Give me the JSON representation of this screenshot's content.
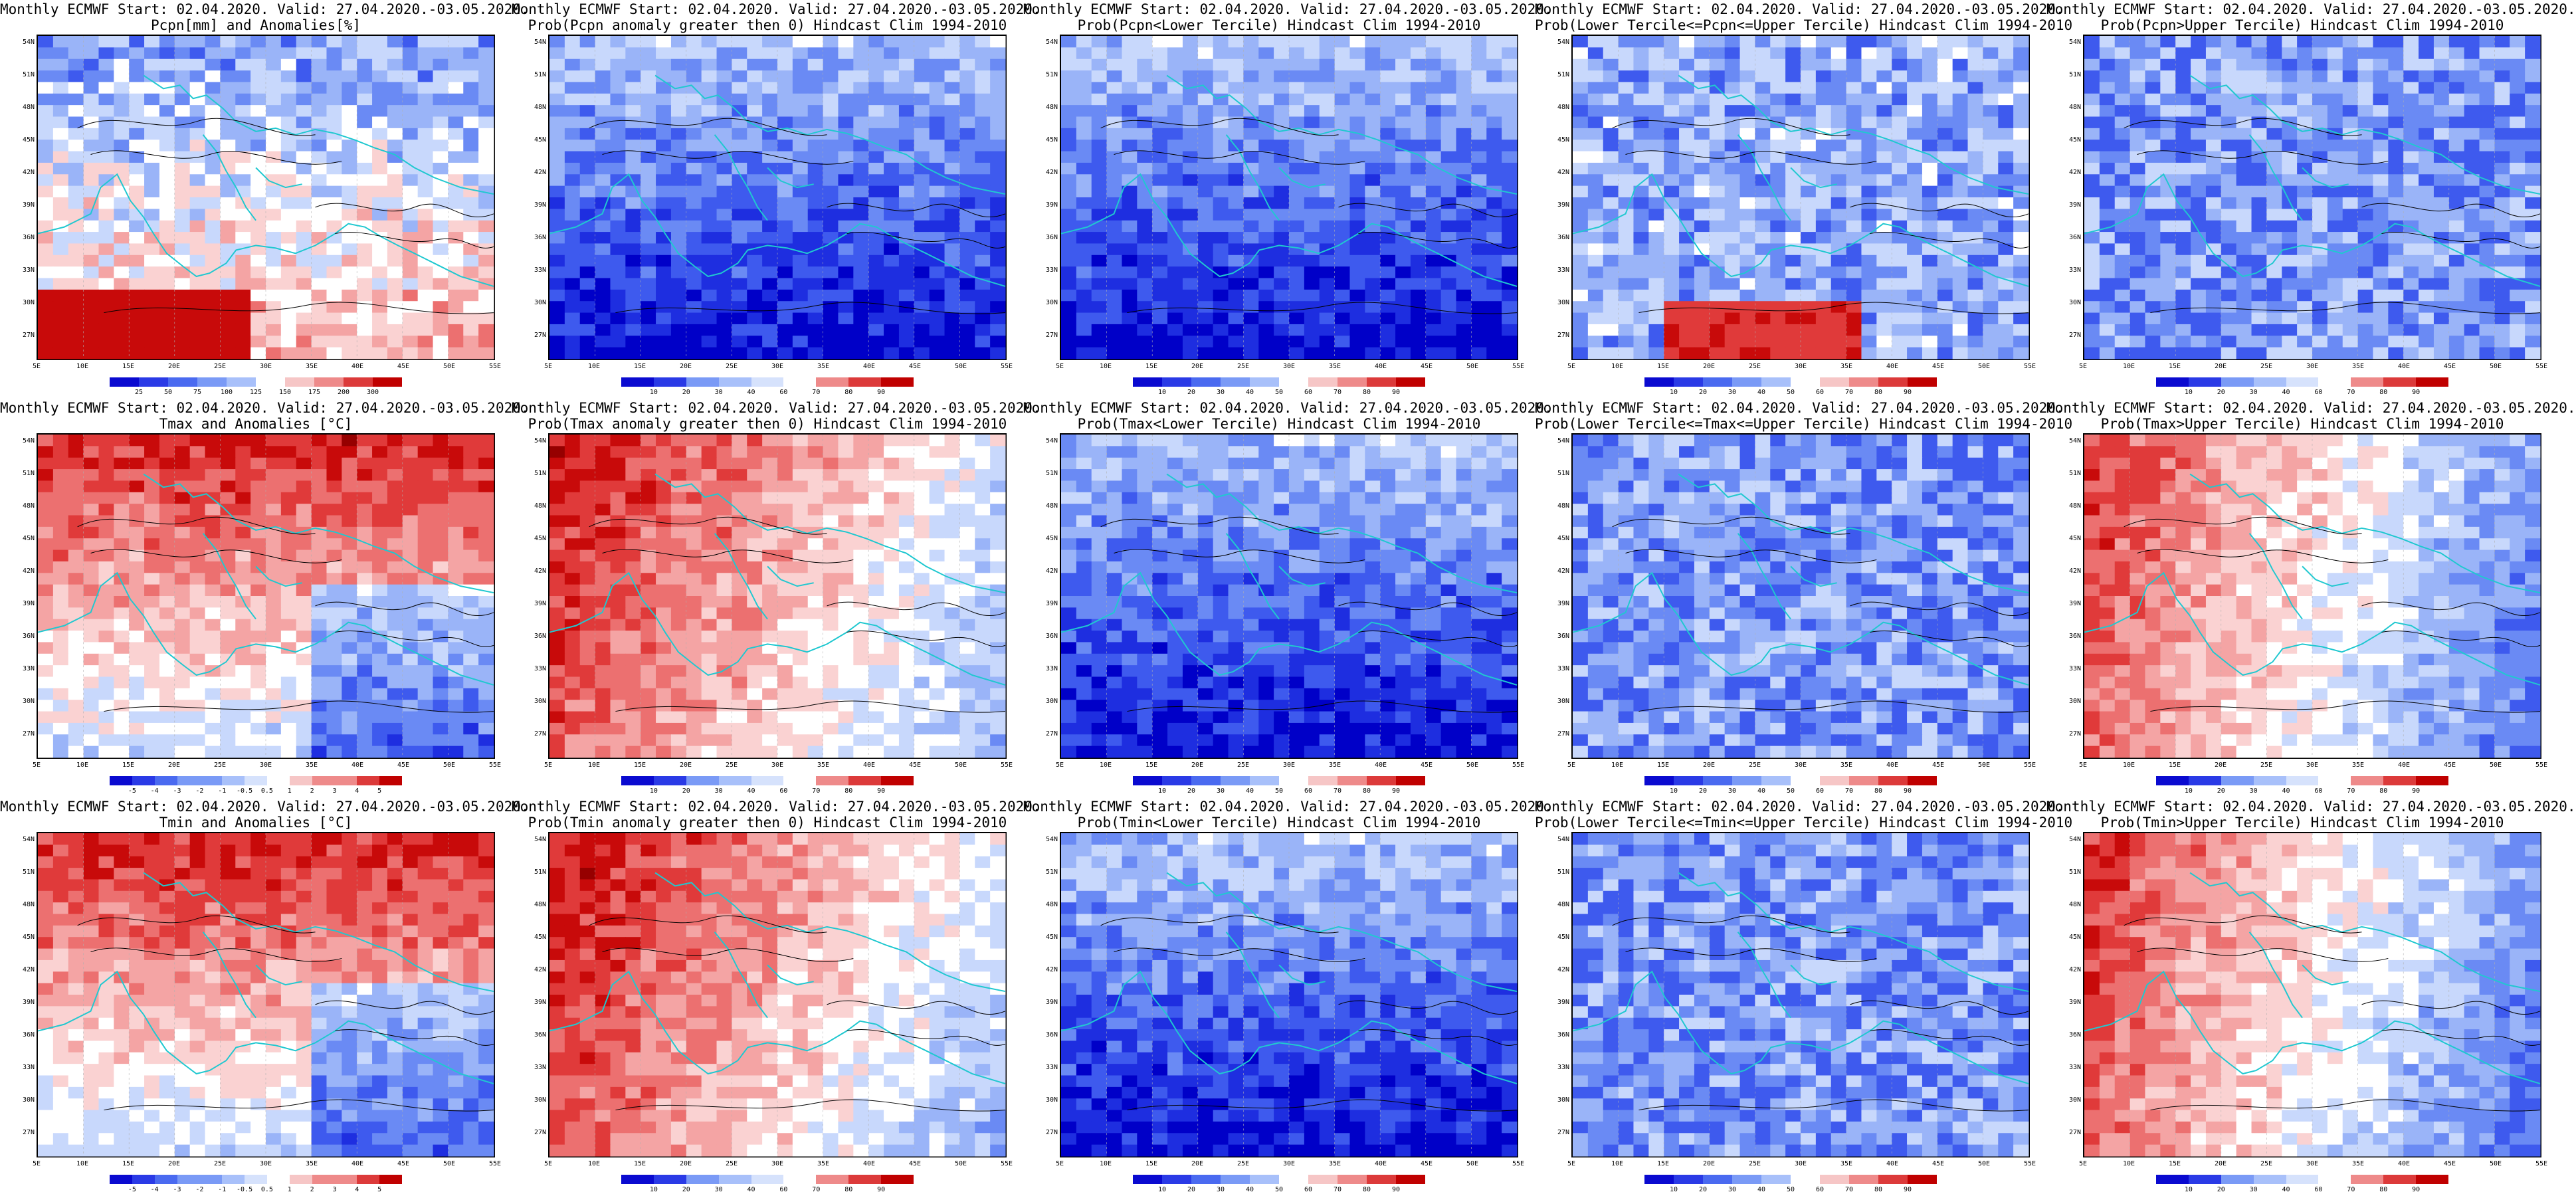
{
  "rows": [
    {
      "variable": "Pcpn",
      "palette": "pcpn",
      "panels": [
        {
          "line1": "Monthly ECMWF Start: 02.04.2020. Valid: 27.04.2020.-03.05.2020.",
          "line2": "Pcpn[mm] and Anomalies[%]",
          "style": "pcpn-anom",
          "colorbar": [
            "25",
            "50",
            "75",
            "100",
            "125",
            "150",
            "175",
            "200",
            "300"
          ]
        },
        {
          "line1": "Monthly ECMWF Start: 02.04.2020. Valid: 27.04.2020.-03.05.2020.",
          "line2": "Prob(Pcpn anomaly greater then 0) Hindcast Clim 1994-2010",
          "style": "blue-strong",
          "colorbar": [
            "10",
            "20",
            "30",
            "40",
            "60",
            "70",
            "80",
            "90"
          ]
        },
        {
          "line1": "Monthly ECMWF Start: 02.04.2020. Valid: 27.04.2020.-03.05.2020.",
          "line2": "Prob(Pcpn<Lower Tercile) Hindcast Clim 1994-2010",
          "style": "blue-strong",
          "colorbar": [
            "10",
            "20",
            "30",
            "40",
            "50",
            "60",
            "70",
            "80",
            "90"
          ]
        },
        {
          "line1": "Monthly ECMWF Start: 02.04.2020. Valid: 27.04.2020.-03.05.2020.",
          "line2": "Prob(Lower Tercile<=Pcpn<=Upper Tercile) Hindcast Clim 1994-2010",
          "style": "blue-mixed-redsouth",
          "colorbar": [
            "10",
            "20",
            "30",
            "40",
            "50",
            "60",
            "70",
            "80",
            "90"
          ]
        },
        {
          "line1": "Monthly ECMWF Start: 02.04.2020. Valid: 27.04.2020.-03.05.2020.",
          "line2": "Prob(Pcpn>Upper Tercile) Hindcast Clim 1994-2010",
          "style": "blue-mid",
          "colorbar": [
            "10",
            "20",
            "30",
            "40",
            "60",
            "70",
            "80",
            "90"
          ]
        }
      ]
    },
    {
      "variable": "Tmax",
      "panels": [
        {
          "line1": "Monthly ECMWF Start: 02.04.2020. Valid: 27.04.2020.-03.05.2020.",
          "line2": "Tmax and Anomalies [°C]",
          "style": "red-north",
          "colorbar": [
            "-5",
            "-4",
            "-3",
            "-2",
            "-1",
            "-0.5",
            "0.5",
            "1",
            "2",
            "3",
            "4",
            "5"
          ]
        },
        {
          "line1": "Monthly ECMWF Start: 02.04.2020. Valid: 27.04.2020.-03.05.2020.",
          "line2": "Prob(Tmax anomaly greater then 0) Hindcast Clim 1994-2010",
          "style": "red-west",
          "colorbar": [
            "10",
            "20",
            "30",
            "40",
            "60",
            "70",
            "80",
            "90"
          ]
        },
        {
          "line1": "Monthly ECMWF Start: 02.04.2020. Valid: 27.04.2020.-03.05.2020.",
          "line2": "Prob(Tmax<Lower Tercile) Hindcast Clim 1994-2010",
          "style": "blue-strong",
          "colorbar": [
            "10",
            "20",
            "30",
            "40",
            "50",
            "60",
            "70",
            "80",
            "90"
          ]
        },
        {
          "line1": "Monthly ECMWF Start: 02.04.2020. Valid: 27.04.2020.-03.05.2020.",
          "line2": "Prob(Lower Tercile<=Tmax<=Upper Tercile) Hindcast Clim 1994-2010",
          "style": "blue-mid",
          "colorbar": [
            "10",
            "20",
            "30",
            "40",
            "50",
            "60",
            "70",
            "80",
            "90"
          ]
        },
        {
          "line1": "Monthly ECMWF Start: 02.04.2020. Valid: 27.04.2020.-03.05.2020.",
          "line2": "Prob(Tmax>Upper Tercile) Hindcast Clim 1994-2010",
          "style": "red-west-blue-east",
          "colorbar": [
            "10",
            "20",
            "30",
            "40",
            "60",
            "70",
            "80",
            "90"
          ]
        }
      ]
    },
    {
      "variable": "Tmin",
      "panels": [
        {
          "line1": "Monthly ECMWF Start: 02.04.2020. Valid: 27.04.2020.-03.05.2020.",
          "line2": "Tmin and Anomalies [°C]",
          "style": "red-north",
          "colorbar": [
            "-5",
            "-4",
            "-3",
            "-2",
            "-1",
            "-0.5",
            "0.5",
            "1",
            "2",
            "3",
            "4",
            "5"
          ]
        },
        {
          "line1": "Monthly ECMWF Start: 02.04.2020. Valid: 27.04.2020.-03.05.2020.",
          "line2": "Prob(Tmin anomaly greater then 0) Hindcast Clim 1994-2010",
          "style": "red-west",
          "colorbar": [
            "10",
            "20",
            "30",
            "40",
            "60",
            "70",
            "80",
            "90"
          ]
        },
        {
          "line1": "Monthly ECMWF Start: 02.04.2020. Valid: 27.04.2020.-03.05.2020.",
          "line2": "Prob(Tmin<Lower Tercile) Hindcast Clim 1994-2010",
          "style": "blue-strong",
          "colorbar": [
            "10",
            "20",
            "30",
            "40",
            "50",
            "60",
            "70",
            "80",
            "90"
          ]
        },
        {
          "line1": "Monthly ECMWF Start: 02.04.2020. Valid: 27.04.2020.-03.05.2020.",
          "line2": "Prob(Lower Tercile<=Tmin<=Upper Tercile) Hindcast Clim 1994-2010",
          "style": "blue-mid",
          "colorbar": [
            "10",
            "20",
            "30",
            "40",
            "50",
            "60",
            "70",
            "80",
            "90"
          ]
        },
        {
          "line1": "Monthly ECMWF Start: 02.04.2020. Valid: 27.04.2020.-03.05.2020.",
          "line2": "Prob(Tmin>Upper Tercile) Hindcast Clim 1994-2010",
          "style": "red-west-blue-east",
          "colorbar": [
            "10",
            "20",
            "30",
            "40",
            "60",
            "70",
            "80",
            "90"
          ]
        }
      ]
    }
  ],
  "lat_labels": [
    "54N",
    "51N",
    "48N",
    "45N",
    "42N",
    "39N",
    "36N",
    "33N",
    "30N",
    "27N"
  ],
  "lon_labels": [
    "5E",
    "10E",
    "15E",
    "20E",
    "25E",
    "30E",
    "35E",
    "40E",
    "45E",
    "50E",
    "55E"
  ],
  "colors": {
    "blue_palette": [
      "#0a0ad0",
      "#2a3ae6",
      "#4a6af0",
      "#7a9af6",
      "#a8c0fa",
      "#d6e2fc",
      "#ffffff",
      "#f6c6c6",
      "#ee8a8a",
      "#dc3a3a",
      "#c00000"
    ],
    "coast": "#20c8d0",
    "contour": "#000000"
  }
}
